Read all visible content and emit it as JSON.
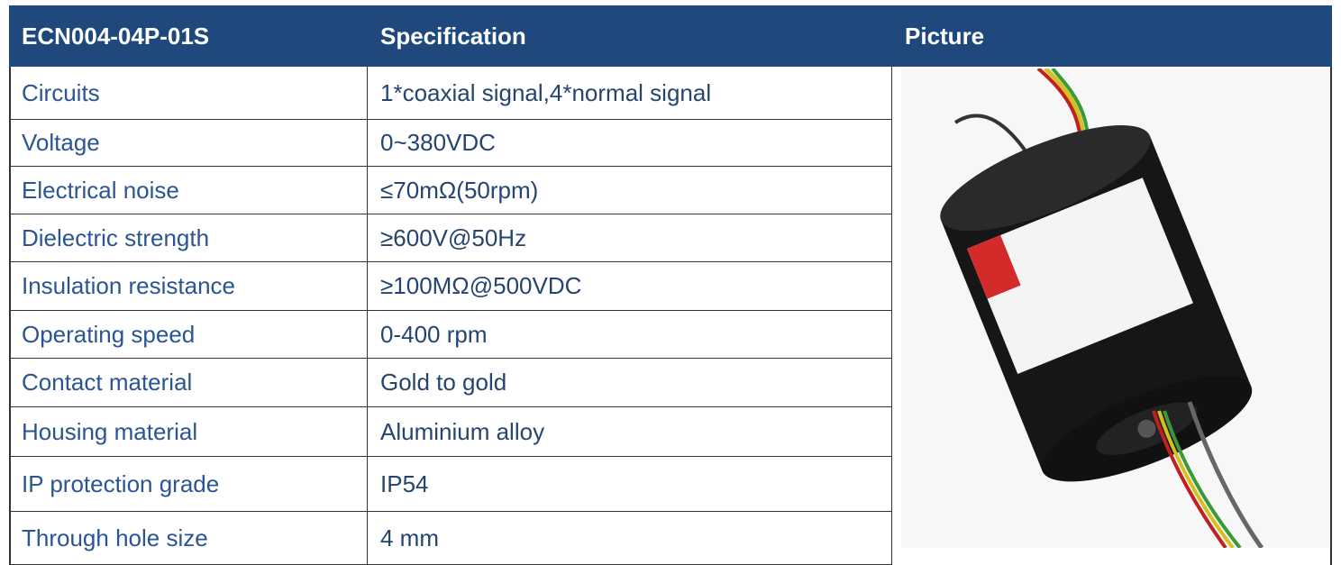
{
  "table": {
    "header": [
      "ECN004-04P-01S",
      "Specification",
      "Picture"
    ],
    "rows": [
      [
        "Circuits",
        "1*coaxial signal,4*normal signal"
      ],
      [
        "Voltage",
        "0~380VDC"
      ],
      [
        "Electrical noise",
        "≤70mΩ(50rpm)"
      ],
      [
        "Dielectric strength",
        "≥600V@50Hz"
      ],
      [
        "Insulation resistance",
        "≥100MΩ@500VDC"
      ],
      [
        "Operating speed",
        "0-400 rpm"
      ],
      [
        "Contact material",
        "Gold to gold"
      ],
      [
        "Housing material",
        "Aluminium alloy"
      ],
      [
        "IP protection grade",
        "IP54"
      ],
      [
        "Through hole size",
        "4 mm"
      ]
    ]
  }
}
